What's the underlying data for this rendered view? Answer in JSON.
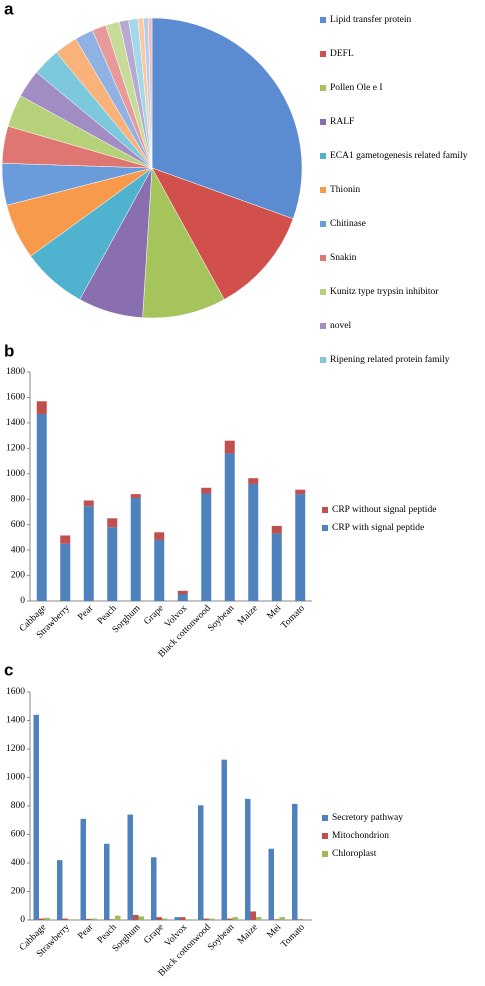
{
  "chart_data": [
    {
      "type": "pie",
      "title": "a",
      "categories": [
        "Lipid transfer protein",
        "DEFL",
        "Pollen Ole e I",
        "RALF",
        "ECA1 gametogenesis related family",
        "Thionin",
        "Chitinase",
        "Snakin",
        "Kunitz type trypsin inhibitor",
        "novel",
        "Ripening related protein family",
        null,
        null,
        null,
        null,
        null,
        null,
        null,
        null,
        null
      ],
      "values": [
        30.5,
        11.5,
        9,
        7,
        7,
        6,
        4.5,
        4,
        3.5,
        3,
        3,
        2.5,
        2,
        1.5,
        1.5,
        1,
        1,
        0.6,
        0.5,
        0.4
      ],
      "colors": [
        "#5b8bd0",
        "#d2504c",
        "#a5c45b",
        "#8a6fb0",
        "#4fb3cf",
        "#f79a4c",
        "#6a9bdb",
        "#e07672",
        "#b5d17a",
        "#a18cc4",
        "#7cc8dd",
        "#f9b27a",
        "#8fb2e3",
        "#e8999a",
        "#c8dc9a",
        "#b8a9d4",
        "#a3d8e8",
        "#fbc9a0",
        "#b5cdee",
        "#f0bcbd"
      ]
    },
    {
      "type": "bar",
      "stacked": true,
      "title": "b",
      "categories": [
        "Cabbage",
        "Strawberry",
        "Pear",
        "Peach",
        "Sorghum",
        "Grape",
        "Volvox",
        "Black cottonwood",
        "Soybean",
        "Maize",
        "Mei",
        "Tomato"
      ],
      "series": [
        {
          "name": "CRP with signal peptide",
          "color": "#4f81bd",
          "values": [
            1470,
            450,
            745,
            580,
            810,
            480,
            55,
            845,
            1160,
            920,
            530,
            840
          ]
        },
        {
          "name": "CRP without signal peptide",
          "color": "#c0504d",
          "values": [
            100,
            65,
            45,
            70,
            30,
            60,
            25,
            45,
            100,
            45,
            60,
            35
          ]
        }
      ],
      "ylim": [
        0,
        1800
      ],
      "yticks": [
        0,
        200,
        400,
        600,
        800,
        1000,
        1200,
        1400,
        1600,
        1800
      ]
    },
    {
      "type": "bar",
      "stacked": false,
      "title": "c",
      "categories": [
        "Cabbage",
        "Strawberry",
        "Pear",
        "Peach",
        "Sorghum",
        "Grape",
        "Volvox",
        "Black cottonwood",
        "Soybean",
        "Maize",
        "Mei",
        "Tomato"
      ],
      "series": [
        {
          "name": "Secretory pathway",
          "color": "#4f81bd",
          "values": [
            1440,
            420,
            710,
            535,
            740,
            440,
            20,
            805,
            1125,
            850,
            500,
            815
          ]
        },
        {
          "name": "Mitochondrion",
          "color": "#c0504d",
          "values": [
            10,
            10,
            8,
            5,
            35,
            20,
            20,
            10,
            10,
            60,
            5,
            5
          ]
        },
        {
          "name": "Chloroplast",
          "color": "#9bbb59",
          "values": [
            15,
            5,
            10,
            30,
            25,
            10,
            5,
            10,
            20,
            20,
            20,
            5
          ]
        }
      ],
      "ylim": [
        0,
        1600
      ],
      "yticks": [
        0,
        200,
        400,
        600,
        800,
        1000,
        1200,
        1400,
        1600
      ]
    }
  ]
}
